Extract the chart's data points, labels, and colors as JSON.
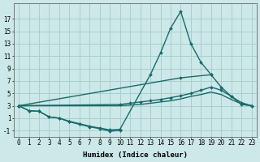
{
  "bg_color": "#cce8e8",
  "grid_color": "#aacece",
  "line_color": "#1a6b6b",
  "line_width": 1.0,
  "marker": "D",
  "marker_size": 2.0,
  "xlabel": "Humidex (Indice chaleur)",
  "xlabel_fontsize": 6.5,
  "tick_fontsize": 5.5,
  "xlim": [
    -0.5,
    23.5
  ],
  "ylim": [
    -2.0,
    19.5
  ],
  "xticks": [
    0,
    1,
    2,
    3,
    4,
    5,
    6,
    7,
    8,
    9,
    10,
    11,
    12,
    13,
    14,
    15,
    16,
    17,
    18,
    19,
    20,
    21,
    22,
    23
  ],
  "yticks": [
    -1,
    1,
    3,
    5,
    7,
    9,
    11,
    13,
    15,
    17
  ],
  "curves": [
    {
      "x": [
        0,
        1,
        2,
        3,
        4,
        5,
        6,
        7,
        8,
        9,
        10,
        13,
        14,
        15,
        16,
        17,
        18,
        19
      ],
      "y": [
        3.0,
        2.2,
        2.1,
        1.2,
        1.0,
        0.5,
        0.1,
        -0.3,
        -0.6,
        -0.9,
        -0.8,
        8.0,
        11.5,
        15.5,
        18.2,
        13.0,
        10.0,
        8.0
      ],
      "has_markers": true
    },
    {
      "x": [
        0,
        1,
        2,
        3,
        4,
        5,
        6,
        7,
        8,
        9,
        10
      ],
      "y": [
        3.0,
        2.2,
        2.1,
        1.2,
        1.0,
        0.4,
        0.0,
        -0.4,
        -0.7,
        -1.1,
        -1.0
      ],
      "has_markers": true
    },
    {
      "x": [
        0,
        10,
        11,
        12,
        13,
        14,
        15,
        16,
        17,
        18,
        19,
        20,
        21,
        22,
        23
      ],
      "y": [
        3.0,
        3.2,
        3.4,
        3.6,
        3.8,
        4.0,
        4.3,
        4.6,
        5.0,
        5.5,
        6.0,
        5.5,
        4.5,
        3.5,
        3.0
      ],
      "has_markers": true
    },
    {
      "x": [
        0,
        10,
        11,
        12,
        13,
        14,
        15,
        16,
        17,
        18,
        19,
        20,
        21,
        22,
        23
      ],
      "y": [
        3.0,
        3.0,
        3.1,
        3.2,
        3.4,
        3.6,
        3.8,
        4.1,
        4.5,
        4.8,
        5.2,
        4.8,
        4.0,
        3.3,
        3.0
      ],
      "has_markers": false
    },
    {
      "x": [
        0,
        16,
        19,
        20,
        21,
        22,
        23
      ],
      "y": [
        3.0,
        7.5,
        8.0,
        6.0,
        4.5,
        3.2,
        3.0
      ],
      "has_markers": true
    }
  ]
}
